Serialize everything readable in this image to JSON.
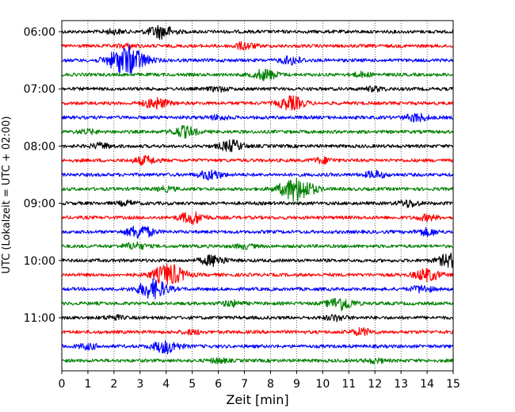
{
  "chart_data": {
    "type": "line",
    "chart_kind": "helicorder seismogram",
    "xlabel": "Zeit  [min]",
    "ylabel": "UTC (Lokalzeit = UTC + 02:00)",
    "xlim": [
      0,
      15
    ],
    "x_ticks": [
      0,
      1,
      2,
      3,
      4,
      5,
      6,
      7,
      8,
      9,
      10,
      11,
      12,
      13,
      14,
      15
    ],
    "x_tick_labels": [
      "0",
      "1",
      "2",
      "3",
      "4",
      "5",
      "6",
      "7",
      "8",
      "9",
      "10",
      "11",
      "12",
      "13",
      "14",
      "15"
    ],
    "y_tick_labels": [
      "06:00",
      "07:00",
      "08:00",
      "09:00",
      "10:00",
      "11:00"
    ],
    "grid": "vertical dotted lines at each minute",
    "row_interval_minutes": 15,
    "colors": [
      "#000000",
      "#ff0000",
      "#0000ff",
      "#008000"
    ],
    "rows": [
      {
        "start": "06:00",
        "bursts": [
          {
            "x": 3.8,
            "amp": 1.0
          },
          {
            "x": 2.0,
            "amp": 0.3
          }
        ]
      },
      {
        "start": "06:15",
        "bursts": [
          {
            "x": 7.0,
            "amp": 0.5
          },
          {
            "x": 2.5,
            "amp": 0.3
          }
        ]
      },
      {
        "start": "06:30",
        "bursts": [
          {
            "x": 2.5,
            "amp": 2.2
          },
          {
            "x": 8.8,
            "amp": 0.6
          }
        ]
      },
      {
        "start": "06:45",
        "bursts": [
          {
            "x": 7.8,
            "amp": 0.8
          },
          {
            "x": 11.5,
            "amp": 0.3
          }
        ]
      },
      {
        "start": "07:00",
        "bursts": [
          {
            "x": 6.0,
            "amp": 0.3
          },
          {
            "x": 12.0,
            "amp": 0.3
          }
        ]
      },
      {
        "start": "07:15",
        "bursts": [
          {
            "x": 3.6,
            "amp": 0.8
          },
          {
            "x": 8.8,
            "amp": 1.0
          }
        ]
      },
      {
        "start": "07:30",
        "bursts": [
          {
            "x": 13.6,
            "amp": 0.6
          },
          {
            "x": 6.0,
            "amp": 0.3
          }
        ]
      },
      {
        "start": "07:45",
        "bursts": [
          {
            "x": 4.7,
            "amp": 0.8
          },
          {
            "x": 1.0,
            "amp": 0.3
          }
        ]
      },
      {
        "start": "08:00",
        "bursts": [
          {
            "x": 6.5,
            "amp": 0.8
          },
          {
            "x": 1.5,
            "amp": 0.4
          }
        ]
      },
      {
        "start": "08:15",
        "bursts": [
          {
            "x": 3.2,
            "amp": 0.6
          },
          {
            "x": 10.0,
            "amp": 0.4
          }
        ]
      },
      {
        "start": "08:30",
        "bursts": [
          {
            "x": 5.7,
            "amp": 0.7
          },
          {
            "x": 12.0,
            "amp": 0.5
          }
        ]
      },
      {
        "start": "08:45",
        "bursts": [
          {
            "x": 9.0,
            "amp": 1.8
          },
          {
            "x": 4.0,
            "amp": 0.3
          }
        ]
      },
      {
        "start": "09:00",
        "bursts": [
          {
            "x": 13.3,
            "amp": 0.5
          },
          {
            "x": 2.5,
            "amp": 0.3
          }
        ]
      },
      {
        "start": "09:15",
        "bursts": [
          {
            "x": 5.0,
            "amp": 0.9
          },
          {
            "x": 14.0,
            "amp": 0.4
          }
        ]
      },
      {
        "start": "09:30",
        "bursts": [
          {
            "x": 3.0,
            "amp": 1.0
          },
          {
            "x": 14.0,
            "amp": 0.5
          }
        ]
      },
      {
        "start": "09:45",
        "bursts": [
          {
            "x": 2.8,
            "amp": 0.5
          },
          {
            "x": 7.0,
            "amp": 0.3
          }
        ]
      },
      {
        "start": "10:00",
        "bursts": [
          {
            "x": 5.8,
            "amp": 0.8
          },
          {
            "x": 14.9,
            "amp": 1.0
          }
        ]
      },
      {
        "start": "10:15",
        "bursts": [
          {
            "x": 4.1,
            "amp": 1.6
          },
          {
            "x": 14.0,
            "amp": 0.9
          }
        ]
      },
      {
        "start": "10:30",
        "bursts": [
          {
            "x": 3.5,
            "amp": 1.4
          },
          {
            "x": 13.8,
            "amp": 0.5
          }
        ]
      },
      {
        "start": "10:45",
        "bursts": [
          {
            "x": 10.7,
            "amp": 1.0
          },
          {
            "x": 6.5,
            "amp": 0.4
          }
        ]
      },
      {
        "start": "11:00",
        "bursts": [
          {
            "x": 10.5,
            "amp": 0.4
          },
          {
            "x": 2.0,
            "amp": 0.3
          }
        ]
      },
      {
        "start": "11:15",
        "bursts": [
          {
            "x": 11.5,
            "amp": 0.5
          },
          {
            "x": 5.0,
            "amp": 0.3
          }
        ]
      },
      {
        "start": "11:30",
        "bursts": [
          {
            "x": 4.0,
            "amp": 1.0
          },
          {
            "x": 1.0,
            "amp": 0.4
          }
        ]
      },
      {
        "start": "11:45",
        "bursts": [
          {
            "x": 6.0,
            "amp": 0.3
          },
          {
            "x": 12.0,
            "amp": 0.3
          }
        ]
      }
    ]
  }
}
